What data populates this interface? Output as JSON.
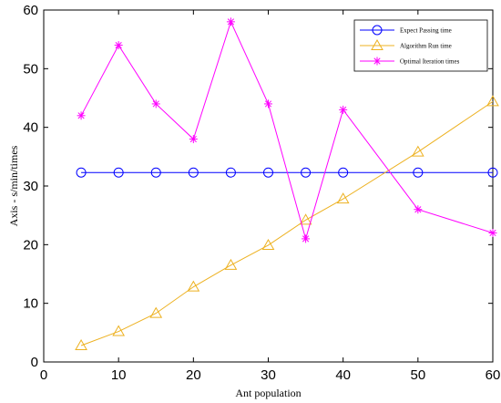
{
  "chart_data": {
    "type": "line",
    "xlabel": "Ant population",
    "ylabel": "Axis - s/min/times",
    "xlim": [
      0,
      60
    ],
    "ylim": [
      0,
      60
    ],
    "xticks": [
      "0",
      "10",
      "20",
      "30",
      "40",
      "50",
      "60"
    ],
    "yticks": [
      "0",
      "10",
      "20",
      "30",
      "40",
      "50",
      "60"
    ],
    "grid": false,
    "legend_position": "top-right",
    "x": [
      5,
      10,
      15,
      20,
      25,
      30,
      35,
      40,
      50,
      60
    ],
    "series": [
      {
        "name": "Expect Passing time",
        "marker": "circle",
        "color": "#0000ff",
        "values": [
          32.3,
          32.3,
          32.3,
          32.3,
          32.3,
          32.3,
          32.3,
          32.3,
          32.3,
          32.3
        ]
      },
      {
        "name": "Algorithm Run time",
        "marker": "triangle",
        "color": "#edb120",
        "values": [
          2.8,
          5.2,
          8.3,
          12.8,
          16.5,
          19.9,
          24.2,
          27.8,
          35.8,
          44.4
        ]
      },
      {
        "name": "Optimal Iteration times",
        "marker": "star",
        "color": "#ff00ff",
        "values": [
          42,
          54,
          44,
          38,
          58,
          44,
          21,
          43,
          26,
          22
        ]
      }
    ]
  }
}
